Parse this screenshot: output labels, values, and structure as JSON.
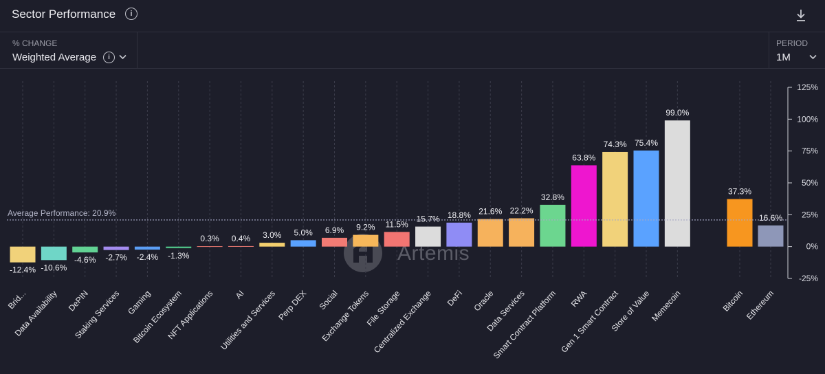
{
  "header": {
    "title": "Sector Performance",
    "info_icon": "info-icon",
    "download_icon": "download-icon"
  },
  "controls": {
    "metric": {
      "label": "% CHANGE",
      "value": "Weighted Average",
      "info_icon": "info-icon",
      "chevron_icon": "chevron-down-icon"
    },
    "period": {
      "label": "PERIOD",
      "value": "1M",
      "chevron_icon": "chevron-down-icon"
    }
  },
  "watermark": {
    "text": "Artemis",
    "icon": "artemis-logo-icon"
  },
  "chart_data": {
    "type": "bar",
    "title": "",
    "xlabel": "",
    "ylabel": "",
    "ylim": [
      -25,
      125
    ],
    "yticks": [
      -25,
      0,
      25,
      50,
      75,
      100,
      125
    ],
    "ytick_labels": [
      "-25%",
      "0%",
      "25%",
      "50%",
      "75%",
      "100%",
      "125%"
    ],
    "grid": "vertical dashed",
    "legend": "none",
    "value_suffix": "%",
    "categories": [
      "Brid...",
      "Data Availability",
      "DePIN",
      "Staking Services",
      "Gaming",
      "Bitcoin Ecosystem",
      "NFT Applications",
      "AI",
      "Utilities and Services",
      "Perp DEX",
      "Social",
      "Exchange Tokens",
      "File Storage",
      "Centralized Exchange",
      "DeFi",
      "Oracle",
      "Data Services",
      "Smart Contract Platform",
      "RWA",
      "Gen 1 Smart Contract",
      "Store of Value",
      "Memecoin",
      "Bitcoin",
      "Ethereum"
    ],
    "values": [
      -12.4,
      -10.6,
      -4.6,
      -2.7,
      -2.4,
      -1.3,
      0.3,
      0.4,
      3.0,
      5.0,
      6.9,
      9.2,
      11.5,
      15.7,
      18.8,
      21.6,
      22.2,
      32.8,
      63.8,
      74.3,
      75.4,
      99.0,
      37.3,
      16.6
    ],
    "value_labels": [
      "-12.4%",
      "-10.6%",
      "-4.6%",
      "-2.7%",
      "-2.4%",
      "-1.3%",
      "0.3%",
      "0.4%",
      "3.0%",
      "5.0%",
      "6.9%",
      "9.2%",
      "11.5%",
      "15.7%",
      "18.8%",
      "21.6%",
      "22.2%",
      "32.8%",
      "63.8%",
      "74.3%",
      "75.4%",
      "99.0%",
      "37.3%",
      "16.6%"
    ],
    "colors": [
      "#f1d27a",
      "#6fd6c7",
      "#62d294",
      "#a48cf0",
      "#5b9ef5",
      "#4fbf86",
      "#ef7b73",
      "#ef7b73",
      "#f3cf6e",
      "#5aa2ff",
      "#f27b74",
      "#f6b75a",
      "#f27572",
      "#dcdcdc",
      "#8f8cf5",
      "#f6b25c",
      "#f6b25c",
      "#6cd68f",
      "#ee16cf",
      "#f1d27a",
      "#5aa2ff",
      "#dcdcdc",
      "#f7961f",
      "#8e97b8"
    ],
    "reference_line": {
      "label": "Average Performance: 20.9%",
      "value": 20.9
    }
  }
}
